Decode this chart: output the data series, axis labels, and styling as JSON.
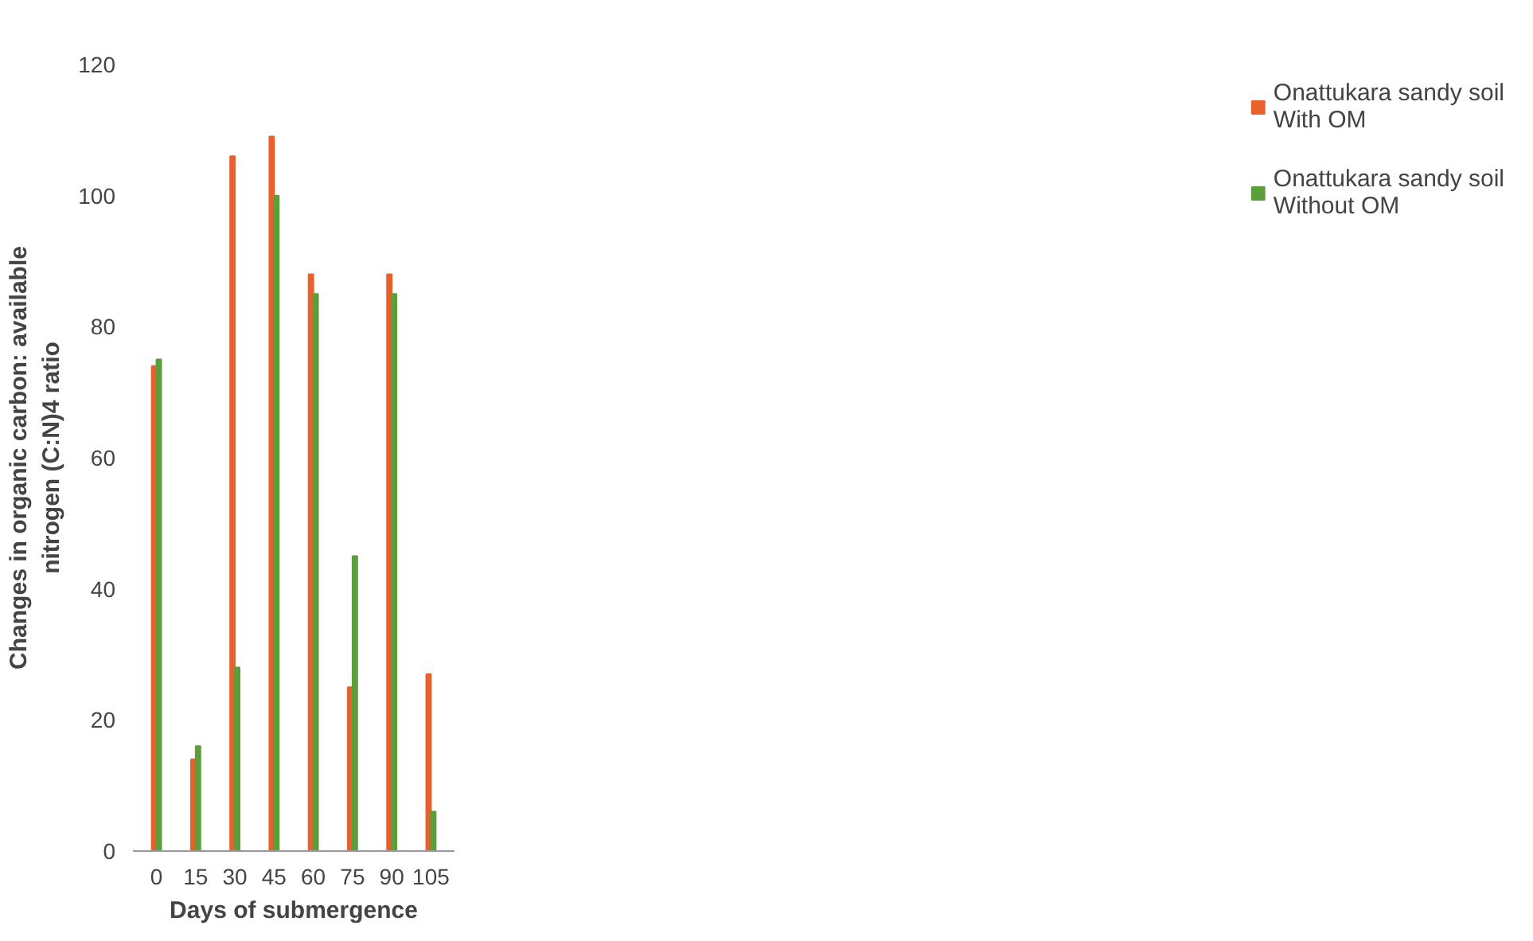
{
  "chart_data": {
    "type": "bar",
    "xlabel": "Days of submergence",
    "ylabel": "Changes in organic carbon: available nitrogen (C:N)4 ratio",
    "categories": [
      "0",
      "15",
      "30",
      "45",
      "60",
      "75",
      "90",
      "105"
    ],
    "series": [
      {
        "name": "Onattukara sandy soil With OM",
        "color": "#e8602c",
        "values": [
          74,
          14,
          106,
          109,
          88,
          25,
          88,
          27
        ]
      },
      {
        "name": "Onattukara sandy soil Without OM",
        "color": "#5c9e3c",
        "values": [
          75,
          16,
          28,
          100,
          85,
          45,
          85,
          6
        ]
      }
    ],
    "ylim": [
      0,
      120
    ],
    "yticks": [
      0,
      20,
      40,
      60,
      80,
      100,
      120
    ],
    "grid": false,
    "legend": "right"
  }
}
